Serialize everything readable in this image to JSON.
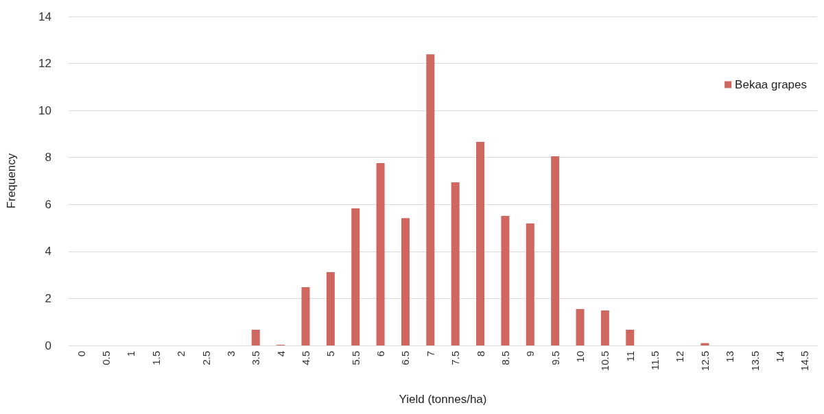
{
  "chart_data": {
    "type": "bar",
    "xlabel": "Yield (tonnes/ha)",
    "ylabel": "Frequency",
    "categories": [
      "0",
      "0.5",
      "1",
      "1.5",
      "2",
      "2.5",
      "3",
      "3.5",
      "4",
      "4.5",
      "5",
      "5.5",
      "6",
      "6.5",
      "7",
      "7.5",
      "8",
      "8.5",
      "9",
      "9.5",
      "10",
      "10.5",
      "11",
      "11.5",
      "12",
      "12.5",
      "13",
      "13.5",
      "14",
      "14.5"
    ],
    "series": [
      {
        "name": "Bekaa grapes",
        "color": "#cf665f",
        "values": [
          0,
          0,
          0,
          0,
          0,
          0,
          0,
          0.67,
          0.03,
          2.48,
          3.12,
          5.83,
          7.76,
          5.42,
          12.39,
          6.94,
          8.66,
          5.51,
          5.19,
          8.05,
          1.55,
          1.49,
          0.67,
          0,
          0,
          0.1,
          0,
          0,
          0,
          0
        ]
      }
    ],
    "ylim": [
      0,
      14
    ],
    "yticks": [
      0,
      2,
      4,
      6,
      8,
      10,
      12,
      14
    ],
    "grid": "y",
    "legend": "right"
  }
}
